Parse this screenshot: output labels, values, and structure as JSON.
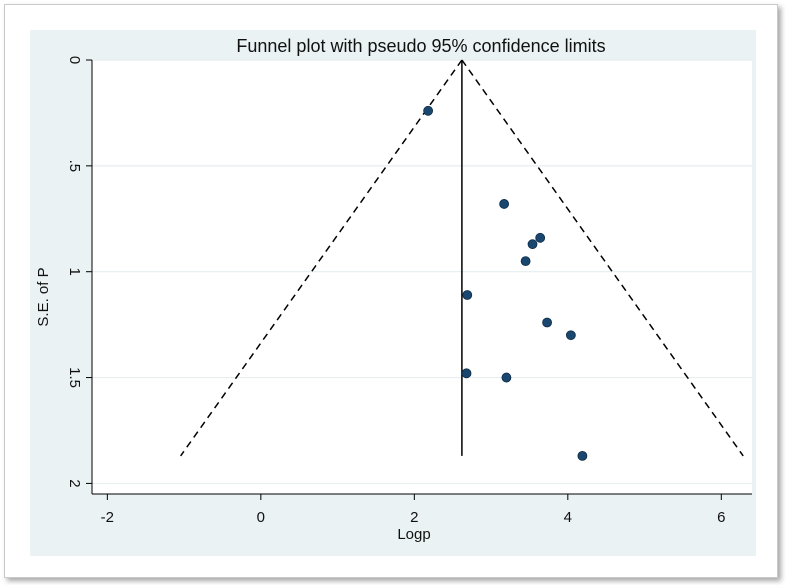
{
  "chart_data": {
    "type": "scatter",
    "title": "Funnel plot with pseudo 95% confidence limits",
    "xlabel": "Logp",
    "ylabel": "S.E. of P",
    "xlim": [
      -2.2,
      6.4
    ],
    "ylim": [
      0,
      2.05
    ],
    "y_reversed": true,
    "grid": true,
    "x_ticks": [
      -2,
      0,
      2,
      4,
      6
    ],
    "x_tick_labels": [
      "-2",
      "0",
      "2",
      "4",
      "6"
    ],
    "y_ticks": [
      0,
      0.5,
      1,
      1.5,
      2
    ],
    "y_tick_labels": [
      "0",
      ".5",
      "1",
      "1.5",
      "2"
    ],
    "pooled_estimate": 2.62,
    "funnel_max_se": 1.87,
    "points": [
      {
        "x": 2.18,
        "y": 0.24
      },
      {
        "x": 3.17,
        "y": 0.68
      },
      {
        "x": 3.64,
        "y": 0.84
      },
      {
        "x": 3.54,
        "y": 0.87
      },
      {
        "x": 3.45,
        "y": 0.95
      },
      {
        "x": 2.69,
        "y": 1.11
      },
      {
        "x": 3.73,
        "y": 1.24
      },
      {
        "x": 4.04,
        "y": 1.3
      },
      {
        "x": 2.68,
        "y": 1.48
      },
      {
        "x": 3.2,
        "y": 1.5
      },
      {
        "x": 4.19,
        "y": 1.87
      }
    ],
    "colors": {
      "background": "#eaf2f3",
      "plot": "#ffffff",
      "grid": "#e6eeef",
      "point": "#1a476f",
      "line": "#000000"
    }
  }
}
